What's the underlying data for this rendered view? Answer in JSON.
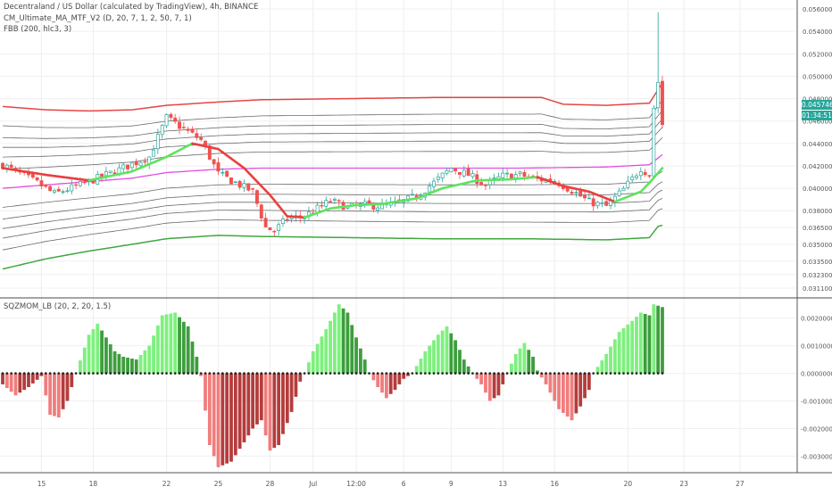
{
  "overlay": {
    "title": "Decentraland / US Dollar (calculated by TradingView), 4h, BINANCE",
    "indicator1": "CM_Ultimate_MA_MTF_V2 (D, 20, 7, 1, 2, 50, 7, 1)",
    "indicator2": "FBB (200, hlc3, 3)",
    "oscillator": "SQZMOM_LB (20, 2, 20, 1.5)"
  },
  "price_tag": {
    "value": "0.04574655",
    "timer": "01:34:51",
    "color": "#26a69a"
  },
  "colors": {
    "up_candle": "#26a69a",
    "down_candle": "#ef5350",
    "ma_up": "#5fe35f",
    "ma_down": "#e9403e",
    "basis": "#e34de3",
    "upper_band": "#e54545",
    "lower_band": "#3ea83e",
    "fib_band": "#6a6a6a",
    "mom_pos_strong": "#7ef07e",
    "mom_pos_weak": "#3d9e3d",
    "mom_neg_strong": "#f07d7d",
    "mom_neg_weak": "#b53c3c"
  },
  "chart_data": [
    {
      "type": "candlestick",
      "title": "Decentraland / US Dollar (calculated by TradingView), 4h, BINANCE",
      "y_axis": {
        "ylim": [
          0.0303,
          0.0568
        ],
        "tick_values": [
          0.0311,
          0.0323,
          0.0335,
          0.035,
          0.0365,
          0.038,
          0.04,
          0.042,
          0.044,
          0.046,
          0.048,
          0.05,
          0.052,
          0.054,
          0.056
        ],
        "tick_labels": [
          "0.03110000",
          "0.03230000",
          "0.03350000",
          "0.03500000",
          "0.03650000",
          "0.03800000",
          "0.04000000",
          "0.04200000",
          "0.04400000",
          "0.04600000",
          "0.04800000",
          "0.05000000",
          "0.05200000",
          "0.05400000",
          "0.05600000"
        ]
      },
      "x_axis": {
        "tick_labels": [
          "15",
          "18",
          "22",
          "25",
          "28",
          "Jul",
          "12:00",
          "6",
          "9",
          "13",
          "16",
          "20",
          "23",
          "27"
        ],
        "tick_bars": [
          9,
          21,
          38,
          50,
          62,
          72,
          82,
          93,
          104,
          116,
          128,
          145,
          158,
          171
        ]
      },
      "close_anchors": [
        [
          0,
          0.0421
        ],
        [
          8,
          0.0405
        ],
        [
          12,
          0.0395
        ],
        [
          18,
          0.0403
        ],
        [
          26,
          0.0415
        ],
        [
          34,
          0.0428
        ],
        [
          38,
          0.0463
        ],
        [
          42,
          0.0453
        ],
        [
          46,
          0.0443
        ],
        [
          50,
          0.0413
        ],
        [
          54,
          0.0405
        ],
        [
          58,
          0.0397
        ],
        [
          61,
          0.0365
        ],
        [
          63,
          0.0362
        ],
        [
          66,
          0.0373
        ],
        [
          70,
          0.0375
        ],
        [
          73,
          0.0382
        ],
        [
          76,
          0.0389
        ],
        [
          80,
          0.0383
        ],
        [
          84,
          0.0385
        ],
        [
          88,
          0.0384
        ],
        [
          92,
          0.0387
        ],
        [
          96,
          0.0393
        ],
        [
          100,
          0.0405
        ],
        [
          104,
          0.0418
        ],
        [
          108,
          0.0412
        ],
        [
          112,
          0.0403
        ],
        [
          116,
          0.0411
        ],
        [
          120,
          0.0412
        ],
        [
          124,
          0.0408
        ],
        [
          128,
          0.0407
        ],
        [
          132,
          0.0398
        ],
        [
          136,
          0.0388
        ],
        [
          140,
          0.0384
        ],
        [
          144,
          0.0399
        ],
        [
          148,
          0.0418
        ],
        [
          150,
          0.0412
        ],
        [
          151,
          0.0472
        ],
        [
          152,
          0.0495
        ],
        [
          153,
          0.0457
        ]
      ],
      "ma_anchors": [
        [
          0,
          0.0418
        ],
        [
          10,
          0.0412
        ],
        [
          20,
          0.0407
        ],
        [
          30,
          0.0415
        ],
        [
          38,
          0.0428
        ],
        [
          44,
          0.044
        ],
        [
          50,
          0.0435
        ],
        [
          56,
          0.0418
        ],
        [
          62,
          0.0394
        ],
        [
          66,
          0.0375
        ],
        [
          70,
          0.0374
        ],
        [
          76,
          0.0382
        ],
        [
          82,
          0.0385
        ],
        [
          88,
          0.0386
        ],
        [
          96,
          0.0391
        ],
        [
          102,
          0.04
        ],
        [
          110,
          0.0407
        ],
        [
          118,
          0.0408
        ],
        [
          124,
          0.041
        ],
        [
          130,
          0.0402
        ],
        [
          136,
          0.0397
        ],
        [
          142,
          0.0388
        ],
        [
          148,
          0.0397
        ],
        [
          150,
          0.0405
        ],
        [
          153,
          0.0418
        ]
      ],
      "bands": {
        "basis": [
          [
            0,
            0.04
          ],
          [
            10,
            0.0403
          ],
          [
            20,
            0.0406
          ],
          [
            30,
            0.0409
          ],
          [
            38,
            0.0414
          ],
          [
            50,
            0.0417
          ],
          [
            60,
            0.0418
          ],
          [
            80,
            0.0418
          ],
          [
            100,
            0.0418
          ],
          [
            120,
            0.0418
          ],
          [
            140,
            0.0419
          ],
          [
            150,
            0.0421
          ],
          [
            153,
            0.043
          ]
        ],
        "upper": [
          [
            0,
            0.0473
          ],
          [
            10,
            0.047
          ],
          [
            20,
            0.0469
          ],
          [
            30,
            0.047
          ],
          [
            38,
            0.0474
          ],
          [
            50,
            0.0477
          ],
          [
            60,
            0.0479
          ],
          [
            80,
            0.048
          ],
          [
            100,
            0.0481
          ],
          [
            120,
            0.0481
          ],
          [
            125,
            0.0481
          ],
          [
            130,
            0.0475
          ],
          [
            140,
            0.0474
          ],
          [
            150,
            0.0476
          ],
          [
            153,
            0.0494
          ]
        ],
        "lower": [
          [
            0,
            0.0328
          ],
          [
            10,
            0.0337
          ],
          [
            20,
            0.0344
          ],
          [
            30,
            0.035
          ],
          [
            38,
            0.0355
          ],
          [
            50,
            0.0358
          ],
          [
            60,
            0.0357
          ],
          [
            80,
            0.0356
          ],
          [
            100,
            0.0355
          ],
          [
            120,
            0.0355
          ],
          [
            140,
            0.0354
          ],
          [
            150,
            0.0356
          ],
          [
            152,
            0.0366
          ],
          [
            153,
            0.0367
          ]
        ],
        "fib_ratios": [
          0.236,
          0.382,
          0.5,
          0.618,
          0.764,
          1.0
        ]
      }
    },
    {
      "type": "bar",
      "title": "SQZMOM_LB (20, 2, 20, 1.5)",
      "y_axis": {
        "ylim": [
          -0.0036,
          0.0027
        ],
        "tick_values": [
          0.002,
          0.001,
          0.0,
          -0.001,
          -0.002,
          -0.003
        ],
        "tick_labels": [
          "0.00200000",
          "0.00100000",
          "0.00000000",
          "-0.00100000",
          "-0.00200000",
          "-0.00300000"
        ]
      },
      "momentum_anchors": [
        [
          0,
          -0.0004
        ],
        [
          3,
          -0.0008
        ],
        [
          6,
          -0.0005
        ],
        [
          9,
          -0.0001
        ],
        [
          11,
          -0.0015
        ],
        [
          13,
          -0.0016
        ],
        [
          15,
          -0.001
        ],
        [
          17,
          0.0
        ],
        [
          20,
          0.0014
        ],
        [
          22,
          0.0018
        ],
        [
          24,
          0.0013
        ],
        [
          26,
          0.0008
        ],
        [
          28,
          0.0006
        ],
        [
          31,
          0.0005
        ],
        [
          34,
          0.001
        ],
        [
          37,
          0.0021
        ],
        [
          40,
          0.0022
        ],
        [
          43,
          0.0017
        ],
        [
          45,
          0.0006
        ],
        [
          46,
          -0.0001
        ],
        [
          48,
          -0.0026
        ],
        [
          50,
          -0.0034
        ],
        [
          53,
          -0.0032
        ],
        [
          56,
          -0.0025
        ],
        [
          58,
          -0.002
        ],
        [
          60,
          -0.0017
        ],
        [
          62,
          -0.0028
        ],
        [
          64,
          -0.0026
        ],
        [
          67,
          -0.0014
        ],
        [
          69,
          -0.0003
        ],
        [
          70,
          0.0
        ],
        [
          72,
          0.0008
        ],
        [
          75,
          0.0016
        ],
        [
          78,
          0.0025
        ],
        [
          80,
          0.0022
        ],
        [
          82,
          0.0013
        ],
        [
          84,
          0.0005
        ],
        [
          85,
          0.0
        ],
        [
          87,
          -0.0005
        ],
        [
          89,
          -0.0009
        ],
        [
          91,
          -0.0006
        ],
        [
          93,
          -0.0002
        ],
        [
          95,
          0.0
        ],
        [
          98,
          0.0008
        ],
        [
          101,
          0.0014
        ],
        [
          103,
          0.0017
        ],
        [
          105,
          0.0012
        ],
        [
          107,
          0.0005
        ],
        [
          109,
          0.0
        ],
        [
          111,
          -0.0004
        ],
        [
          113,
          -0.001
        ],
        [
          115,
          -0.0008
        ],
        [
          116,
          -0.0004
        ],
        [
          117,
          0.0
        ],
        [
          119,
          0.0007
        ],
        [
          121,
          0.0011
        ],
        [
          123,
          0.0006
        ],
        [
          124,
          0.0001
        ],
        [
          126,
          -0.0004
        ],
        [
          129,
          -0.0013
        ],
        [
          132,
          -0.0017
        ],
        [
          134,
          -0.0012
        ],
        [
          136,
          -0.0006
        ],
        [
          137,
          0.0
        ],
        [
          140,
          0.0007
        ],
        [
          143,
          0.0015
        ],
        [
          146,
          0.0019
        ],
        [
          148,
          0.0022
        ],
        [
          150,
          0.0021
        ],
        [
          151,
          0.0025
        ],
        [
          153,
          0.0024
        ]
      ]
    }
  ]
}
